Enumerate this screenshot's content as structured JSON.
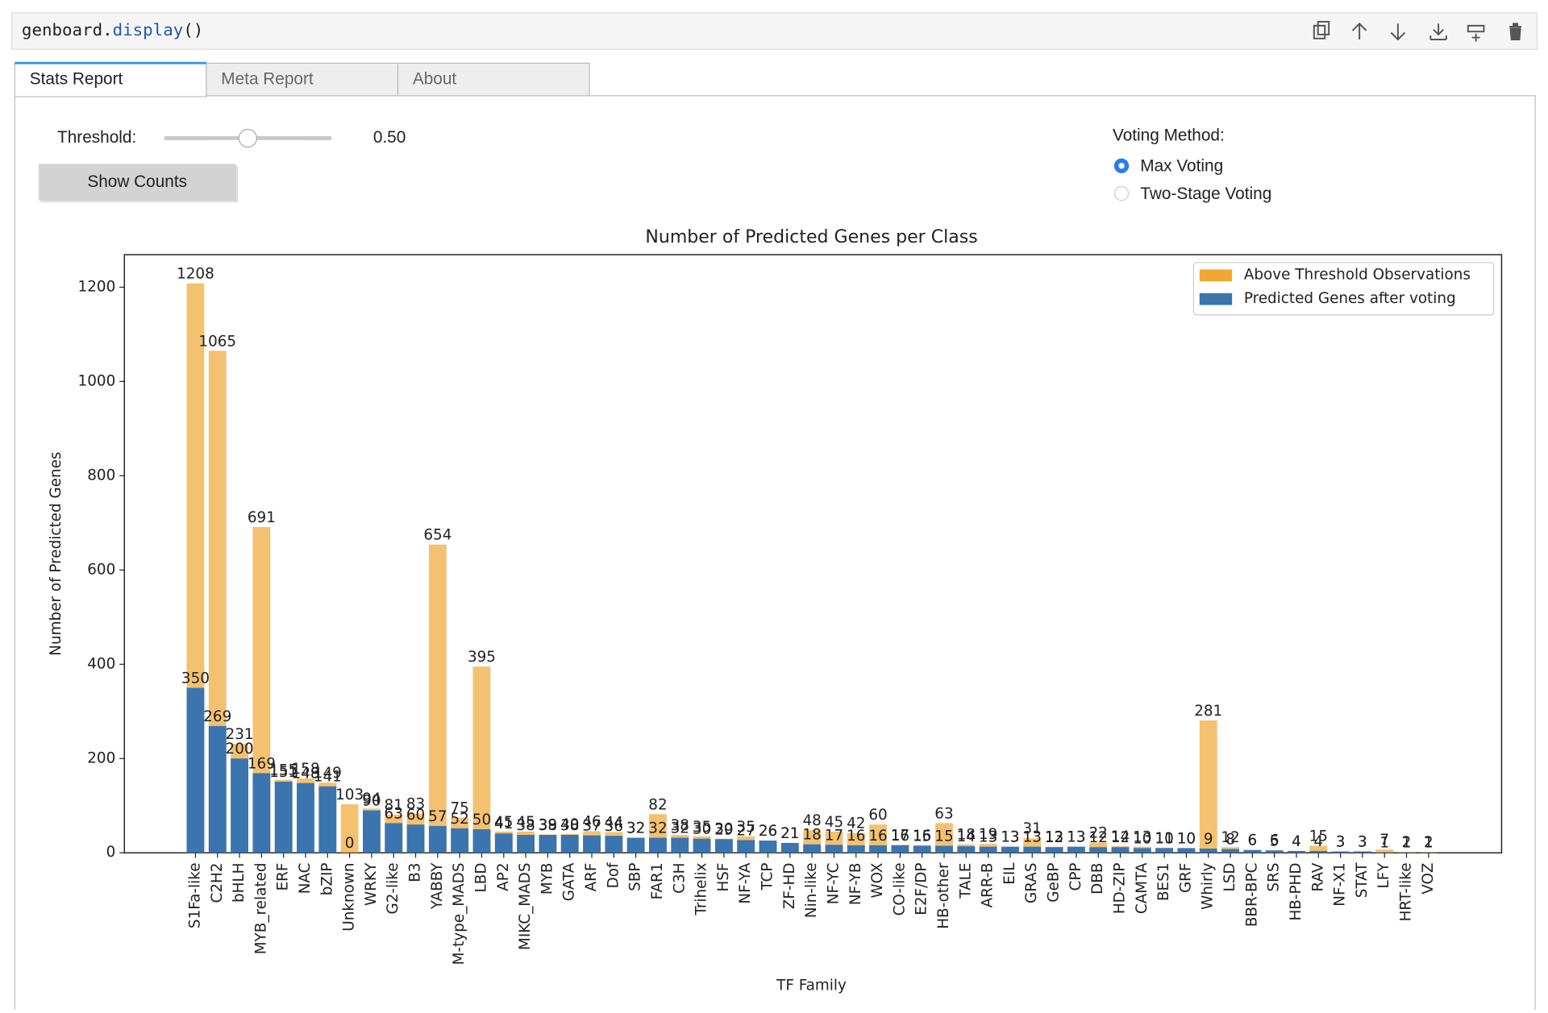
{
  "cell": {
    "code": [
      "genboard.",
      "display",
      "()"
    ]
  },
  "tabs": {
    "labels": [
      "Stats Report",
      "Meta Report",
      "About"
    ],
    "active": 0
  },
  "controls": {
    "threshold_label": "Threshold:",
    "threshold": {
      "value": 0.5,
      "label": "0.50"
    },
    "button": "Show Counts",
    "voting_title": "Voting Method:",
    "voting_options": [
      "Max Voting",
      "Two-Stage Voting"
    ],
    "voting_selected": 0
  },
  "chart_data": {
    "type": "bar",
    "title": "Number of Predicted Genes per Class",
    "xlabel": "TF Family",
    "ylabel": "Number of Predicted Genes",
    "categories": [
      "S1Fa-like",
      "C2H2",
      "bHLH",
      "MYB_related",
      "ERF",
      "NAC",
      "bZIP",
      "Unknown",
      "WRKY",
      "G2-like",
      "B3",
      "YABBY",
      "M-type_MADS",
      "LBD",
      "AP2",
      "MIKC_MADS",
      "MYB",
      "GATA",
      "ARF",
      "Dof",
      "SBP",
      "FAR1",
      "C3H",
      "Trihelix",
      "HSF",
      "NF-YA",
      "TCP",
      "ZF-HD",
      "Nin-like",
      "NF-YC",
      "NF-YB",
      "WOX",
      "CO-like",
      "E2F/DP",
      "HB-other",
      "TALE",
      "ARR-B",
      "EIL",
      "GRAS",
      "GeBP",
      "CPP",
      "DBB",
      "HD-ZIP",
      "CAMTA",
      "BES1",
      "GRF",
      "Whirly",
      "LSD",
      "BBR-BPC",
      "SRS",
      "HB-PHD",
      "RAV",
      "NF-X1",
      "STAT",
      "LFY",
      "HRT-like",
      "VOZ"
    ],
    "series": [
      {
        "name": "Above Threshold Observations",
        "color": "#f0a733",
        "values": [
          1208,
          1065,
          231,
          691,
          155,
          158,
          149,
          103,
          94,
          81,
          83,
          654,
          75,
          395,
          45,
          45,
          39,
          40,
          46,
          44,
          32,
          82,
          38,
          35,
          30,
          35,
          26,
          21,
          48,
          45,
          42,
          60,
          17,
          16,
          63,
          18,
          19,
          13,
          31,
          13,
          13,
          22,
          14,
          13,
          11,
          10,
          281,
          12,
          6,
          6,
          4,
          15,
          3,
          3,
          7,
          2,
          2
        ]
      },
      {
        "name": "Predicted Genes after voting",
        "color": "#3a75b0",
        "values": [
          350,
          269,
          200,
          169,
          151,
          148,
          141,
          0,
          90,
          63,
          60,
          57,
          52,
          50,
          41,
          38,
          38,
          38,
          37,
          36,
          32,
          32,
          32,
          30,
          29,
          27,
          26,
          21,
          18,
          17,
          16,
          16,
          16,
          15,
          15,
          14,
          13,
          13,
          13,
          12,
          13,
          12,
          12,
          10,
          10,
          10,
          9,
          8,
          6,
          5,
          4,
          4,
          3,
          3,
          1,
          1,
          1
        ]
      }
    ],
    "ylim": [
      0,
      1269
    ],
    "yticks": [
      0,
      200,
      400,
      600,
      800,
      1000,
      1200
    ],
    "legend": "upper right"
  }
}
